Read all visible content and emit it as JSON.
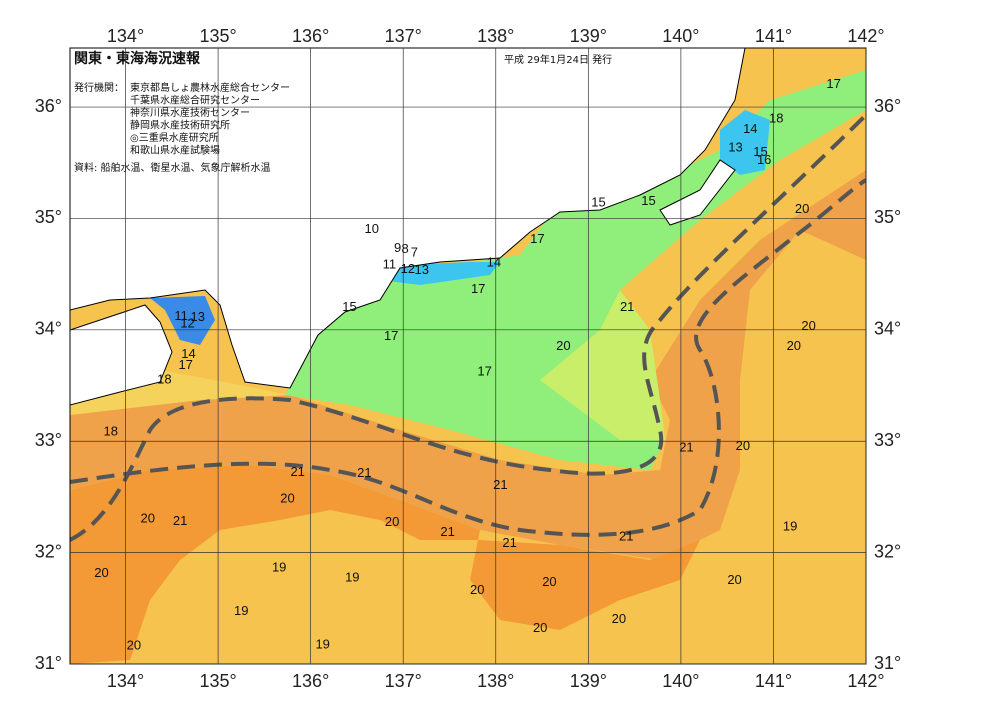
{
  "header": {
    "title": "関東・東海海況速報",
    "date": "平成 29年1月24日 発行",
    "issuer_label": "発行機関：",
    "issuers": [
      "東京都島しょ農林水産総合センター",
      "千葉県水産総合研究センター",
      "神奈川県水産技術センター",
      "静岡県水産技術研究所",
      "◎三重県水産研究所",
      "和歌山県水産試験場"
    ],
    "source": "資料: 船舶水温、衛星水温、気象庁解析水温"
  },
  "map": {
    "lon_range": [
      133.4,
      142
    ],
    "lat_range": [
      31,
      36.53
    ],
    "lon_ticks": [
      {
        "value": 134,
        "label": "134°"
      },
      {
        "value": 135,
        "label": "135°"
      },
      {
        "value": 136,
        "label": "136°"
      },
      {
        "value": 137,
        "label": "137°"
      },
      {
        "value": 138,
        "label": "138°"
      },
      {
        "value": 139,
        "label": "139°"
      },
      {
        "value": 140,
        "label": "140°"
      },
      {
        "value": 141,
        "label": "141°"
      },
      {
        "value": 142,
        "label": "142°"
      }
    ],
    "lat_ticks": [
      {
        "value": 31,
        "label": "31°"
      },
      {
        "value": 32,
        "label": "32°"
      },
      {
        "value": 33,
        "label": "33°"
      },
      {
        "value": 34,
        "label": "34°"
      },
      {
        "value": 35,
        "label": "35°"
      },
      {
        "value": 36,
        "label": "36°"
      }
    ],
    "isotherm_labels": [
      {
        "value": 17,
        "lon": 141.65,
        "lat": 36.2
      },
      {
        "value": 18,
        "lon": 141.03,
        "lat": 35.89
      },
      {
        "value": 14,
        "lon": 140.75,
        "lat": 35.8
      },
      {
        "value": 13,
        "lon": 140.59,
        "lat": 35.63
      },
      {
        "value": 15,
        "lon": 140.86,
        "lat": 35.59
      },
      {
        "value": 16,
        "lon": 140.9,
        "lat": 35.52
      },
      {
        "value": 15,
        "lon": 139.11,
        "lat": 35.14
      },
      {
        "value": 15,
        "lon": 139.65,
        "lat": 35.15
      },
      {
        "value": 20,
        "lon": 141.31,
        "lat": 35.08
      },
      {
        "value": 10,
        "lon": 136.66,
        "lat": 34.9
      },
      {
        "value": 9,
        "lon": 136.94,
        "lat": 34.73
      },
      {
        "value": 8,
        "lon": 137.02,
        "lat": 34.72
      },
      {
        "value": 7,
        "lon": 137.12,
        "lat": 34.69
      },
      {
        "value": 17,
        "lon": 138.45,
        "lat": 34.81
      },
      {
        "value": 11,
        "lon": 136.85,
        "lat": 34.58
      },
      {
        "value": 12,
        "lon": 137.05,
        "lat": 34.54
      },
      {
        "value": 13,
        "lon": 137.2,
        "lat": 34.53
      },
      {
        "value": 14,
        "lon": 137.98,
        "lat": 34.6
      },
      {
        "value": 17,
        "lon": 137.81,
        "lat": 34.36
      },
      {
        "value": 15,
        "lon": 136.42,
        "lat": 34.2
      },
      {
        "value": 21,
        "lon": 139.42,
        "lat": 34.2
      },
      {
        "value": 11,
        "lon": 134.6,
        "lat": 34.12
      },
      {
        "value": 13,
        "lon": 134.78,
        "lat": 34.11
      },
      {
        "value": 12,
        "lon": 134.67,
        "lat": 34.05
      },
      {
        "value": 20,
        "lon": 141.38,
        "lat": 34.03
      },
      {
        "value": 17,
        "lon": 136.87,
        "lat": 33.94
      },
      {
        "value": 20,
        "lon": 138.73,
        "lat": 33.85
      },
      {
        "value": 20,
        "lon": 141.22,
        "lat": 33.85
      },
      {
        "value": 14,
        "lon": 134.68,
        "lat": 33.78
      },
      {
        "value": 17,
        "lon": 134.65,
        "lat": 33.68
      },
      {
        "value": 17,
        "lon": 137.88,
        "lat": 33.62
      },
      {
        "value": 18,
        "lon": 134.42,
        "lat": 33.55
      },
      {
        "value": 18,
        "lon": 133.84,
        "lat": 33.08
      },
      {
        "value": 21,
        "lon": 140.06,
        "lat": 32.94
      },
      {
        "value": 20,
        "lon": 140.67,
        "lat": 32.95
      },
      {
        "value": 21,
        "lon": 135.86,
        "lat": 32.72
      },
      {
        "value": 21,
        "lon": 136.58,
        "lat": 32.71
      },
      {
        "value": 21,
        "lon": 138.05,
        "lat": 32.6
      },
      {
        "value": 20,
        "lon": 135.75,
        "lat": 32.48
      },
      {
        "value": 20,
        "lon": 134.24,
        "lat": 32.3
      },
      {
        "value": 21,
        "lon": 134.59,
        "lat": 32.28
      },
      {
        "value": 20,
        "lon": 136.88,
        "lat": 32.27
      },
      {
        "value": 19,
        "lon": 141.18,
        "lat": 32.23
      },
      {
        "value": 21,
        "lon": 137.48,
        "lat": 32.18
      },
      {
        "value": 21,
        "lon": 138.15,
        "lat": 32.08
      },
      {
        "value": 21,
        "lon": 139.41,
        "lat": 32.14
      },
      {
        "value": 20,
        "lon": 133.74,
        "lat": 31.81
      },
      {
        "value": 19,
        "lon": 135.66,
        "lat": 31.86
      },
      {
        "value": 19,
        "lon": 136.45,
        "lat": 31.77
      },
      {
        "value": 20,
        "lon": 138.58,
        "lat": 31.73
      },
      {
        "value": 20,
        "lon": 140.58,
        "lat": 31.75
      },
      {
        "value": 20,
        "lon": 137.8,
        "lat": 31.66
      },
      {
        "value": 19,
        "lon": 135.25,
        "lat": 31.47
      },
      {
        "value": 20,
        "lon": 139.33,
        "lat": 31.4
      },
      {
        "value": 20,
        "lon": 138.48,
        "lat": 31.32
      },
      {
        "value": 19,
        "lon": 136.13,
        "lat": 31.17
      },
      {
        "value": 20,
        "lon": 134.09,
        "lat": 31.16
      }
    ]
  }
}
